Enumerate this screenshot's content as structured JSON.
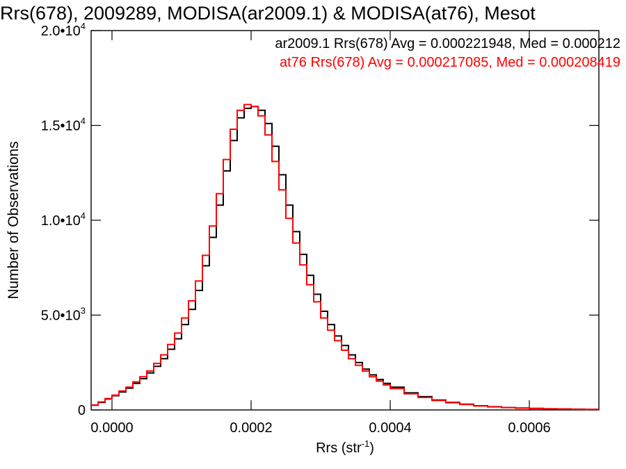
{
  "chart_data": {
    "type": "line",
    "title": "Rrs(678), 2009289, MODISA(ar2009.1) & MODISA(at76), Mesot",
    "xlabel": "Rrs (str",
    "xlabel_sup": "-1",
    "xlabel_end": ")",
    "ylabel": "Number of Observations",
    "xlim": [
      -3e-05,
      0.0007
    ],
    "ylim": [
      0,
      20000
    ],
    "x_ticks": [
      {
        "value": 0.0,
        "label": "0.0000"
      },
      {
        "value": 0.0002,
        "label": "0.0002"
      },
      {
        "value": 0.0004,
        "label": "0.0004"
      },
      {
        "value": 0.0006,
        "label": "0.0006"
      }
    ],
    "y_ticks": [
      {
        "value": 0,
        "mant": "0",
        "exp": ""
      },
      {
        "value": 5000,
        "mant": "5.0•10",
        "exp": "3"
      },
      {
        "value": 10000,
        "mant": "1.0•10",
        "exp": "4"
      },
      {
        "value": 15000,
        "mant": "1.5•10",
        "exp": "4"
      },
      {
        "value": 20000,
        "mant": "2.0•10",
        "exp": "4"
      }
    ],
    "series": [
      {
        "label": "ar2009.1 Rrs(678) Avg = 0.000221948, Med = 0.000212",
        "color": "#000000",
        "x": [
          -3e-05,
          -2e-05,
          -1e-05,
          0.0,
          1e-05,
          2e-05,
          3e-05,
          4e-05,
          5e-05,
          6e-05,
          7e-05,
          8e-05,
          9e-05,
          0.0001,
          0.00011,
          0.00012,
          0.00013,
          0.00014,
          0.00015,
          0.00016,
          0.00017,
          0.00018,
          0.00019,
          0.0002,
          0.00021,
          0.00022,
          0.00023,
          0.00024,
          0.00025,
          0.00026,
          0.00027,
          0.00028,
          0.00029,
          0.0003,
          0.00031,
          0.00032,
          0.00033,
          0.00034,
          0.00035,
          0.00036,
          0.00037,
          0.00038,
          0.00039,
          0.0004,
          0.00042,
          0.00044,
          0.00046,
          0.00048,
          0.0005,
          0.00052,
          0.00054,
          0.00056,
          0.00058,
          0.0006,
          0.00062,
          0.00064,
          0.00066,
          0.00068,
          0.0007
        ],
        "y": [
          250,
          400,
          580,
          750,
          950,
          1150,
          1400,
          1650,
          1950,
          2300,
          2700,
          3200,
          3750,
          4500,
          5300,
          6300,
          7600,
          9100,
          10800,
          12600,
          14200,
          15400,
          15900,
          16000,
          15800,
          15100,
          13900,
          12400,
          10800,
          9400,
          8200,
          7100,
          6100,
          5200,
          4500,
          3900,
          3400,
          2900,
          2500,
          2150,
          1850,
          1600,
          1400,
          1200,
          900,
          700,
          520,
          400,
          300,
          220,
          170,
          130,
          100,
          80,
          60,
          50,
          40,
          30,
          20
        ]
      },
      {
        "label": "at76 Rrs(678) Avg = 0.000217085, Med = 0.000208419",
        "color": "#ff0000",
        "x": [
          -3e-05,
          -2e-05,
          -1e-05,
          0.0,
          1e-05,
          2e-05,
          3e-05,
          4e-05,
          5e-05,
          6e-05,
          7e-05,
          8e-05,
          9e-05,
          0.0001,
          0.00011,
          0.00012,
          0.00013,
          0.00014,
          0.00015,
          0.00016,
          0.00017,
          0.00018,
          0.00019,
          0.0002,
          0.00021,
          0.00022,
          0.00023,
          0.00024,
          0.00025,
          0.00026,
          0.00027,
          0.00028,
          0.00029,
          0.0003,
          0.00031,
          0.00032,
          0.00033,
          0.00034,
          0.00035,
          0.00036,
          0.00037,
          0.00038,
          0.00039,
          0.0004,
          0.00042,
          0.00044,
          0.00046,
          0.00048,
          0.0005,
          0.00052,
          0.00054,
          0.00056,
          0.00058,
          0.0006,
          0.00062,
          0.00064,
          0.00066,
          0.00068,
          0.0007
        ],
        "y": [
          260,
          420,
          600,
          780,
          1000,
          1200,
          1480,
          1750,
          2050,
          2450,
          2900,
          3450,
          4050,
          4850,
          5750,
          6800,
          8150,
          9700,
          11400,
          13200,
          14800,
          15800,
          16100,
          16000,
          15500,
          14500,
          13100,
          11600,
          10100,
          8800,
          7650,
          6600,
          5700,
          4850,
          4200,
          3650,
          3150,
          2700,
          2350,
          2050,
          1750,
          1520,
          1320,
          1130,
          850,
          660,
          500,
          380,
          290,
          210,
          160,
          125,
          95,
          75,
          58,
          46,
          36,
          28,
          18
        ]
      }
    ],
    "grid": false,
    "legend": "top-right"
  }
}
